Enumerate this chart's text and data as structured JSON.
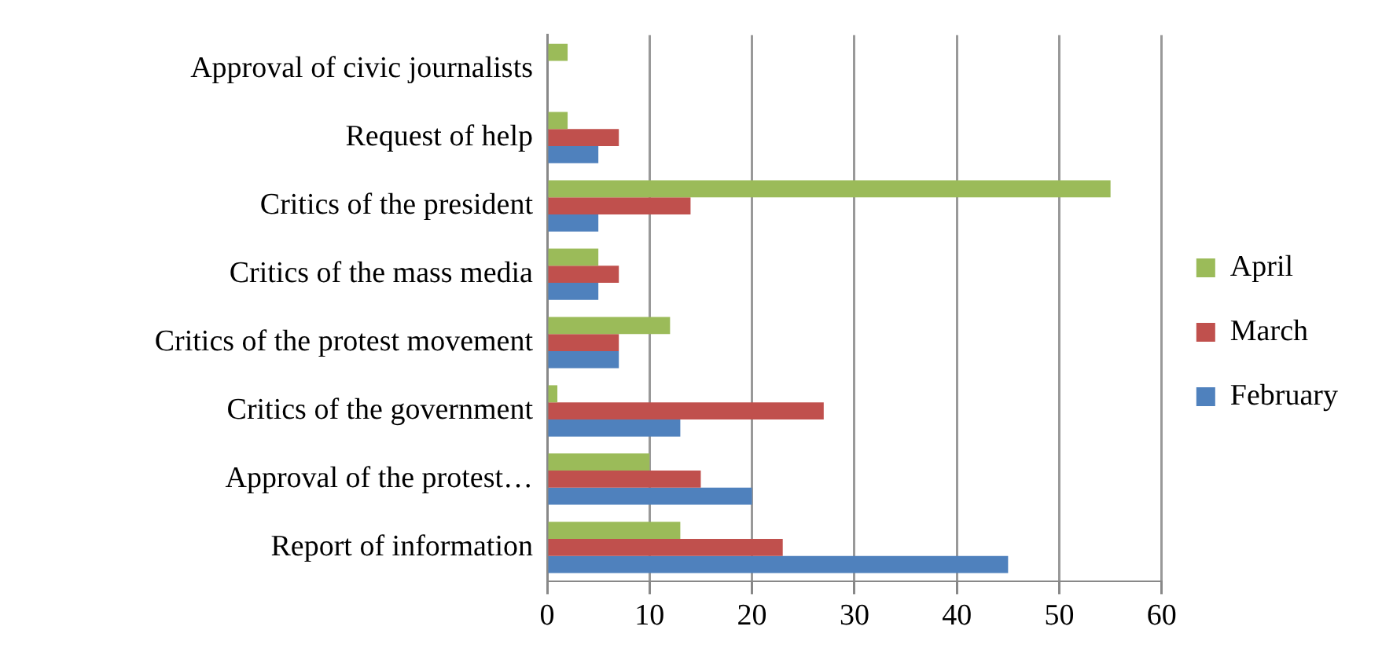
{
  "chart_data": {
    "type": "bar",
    "orientation": "horizontal",
    "categories": [
      "Approval of civic journalists",
      "Request of help",
      "Critics of the president",
      "Critics of the mass media",
      "Critics of the protest movement",
      "Critics of the government",
      "Approval of the protest…",
      "Report of information"
    ],
    "series": [
      {
        "name": "April",
        "color": "#9bbb59",
        "values": [
          2,
          2,
          55,
          5,
          12,
          1,
          10,
          13
        ]
      },
      {
        "name": "March",
        "color": "#c0504d",
        "values": [
          0,
          7,
          14,
          7,
          7,
          27,
          15,
          23
        ]
      },
      {
        "name": "February",
        "color": "#4f81bd",
        "values": [
          0,
          5,
          5,
          5,
          7,
          13,
          20,
          45
        ]
      }
    ],
    "xlim": [
      0,
      60
    ],
    "xticks": [
      0,
      10,
      20,
      30,
      40,
      50,
      60
    ],
    "grid": "x",
    "legend": "right"
  }
}
